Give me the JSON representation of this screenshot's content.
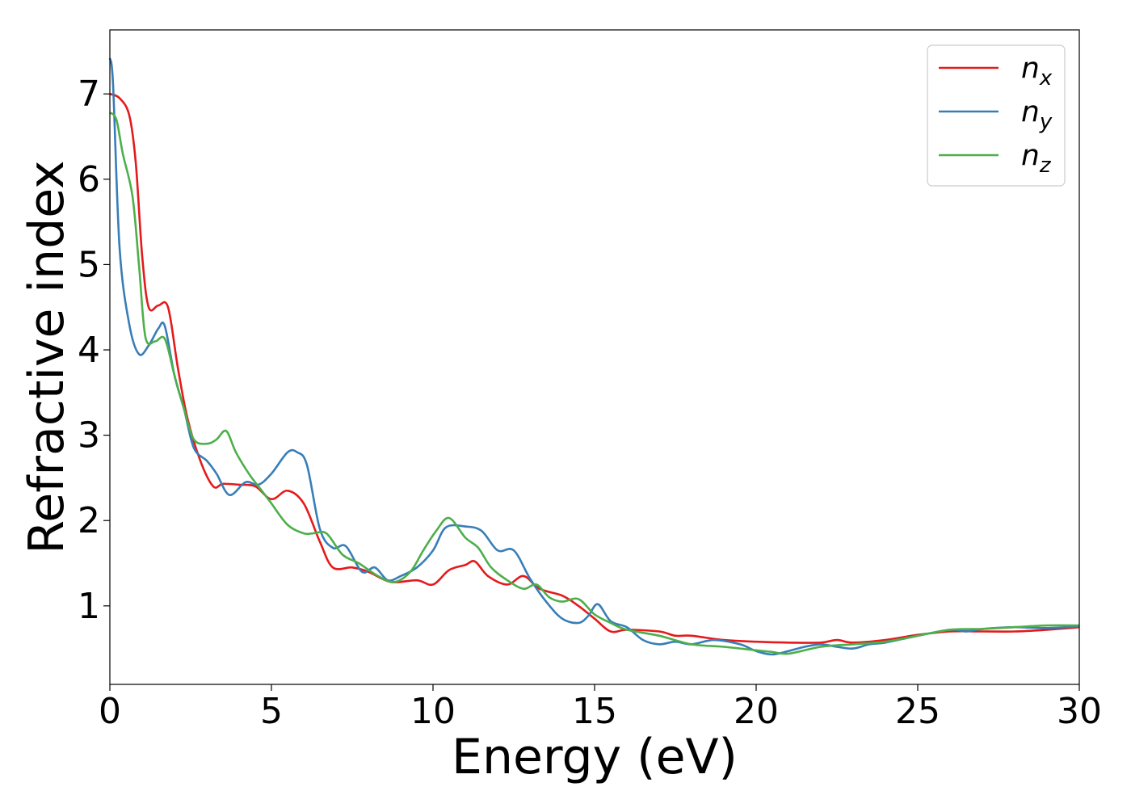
{
  "chart_data": {
    "type": "line",
    "xlabel": "Energy (eV)",
    "ylabel": "Refractive index",
    "xlim": [
      0,
      30
    ],
    "ylim": [
      0.08,
      7.75
    ],
    "xticks": [
      0,
      5,
      10,
      15,
      20,
      25,
      30
    ],
    "xtick_labels": [
      "0",
      "5",
      "10",
      "15",
      "20",
      "25",
      "30"
    ],
    "yticks": [
      1,
      2,
      3,
      4,
      5,
      6,
      7
    ],
    "ytick_labels": [
      "1",
      "2",
      "3",
      "4",
      "5",
      "6",
      "7"
    ],
    "grid": false,
    "legend_position": "top-right",
    "series": [
      {
        "name": "n_x",
        "label_base": "n",
        "label_sub": "x",
        "color": "#e41a1c",
        "points": [
          [
            0,
            7.0
          ],
          [
            0.3,
            6.95
          ],
          [
            0.6,
            6.75
          ],
          [
            0.8,
            6.2
          ],
          [
            1.0,
            5.1
          ],
          [
            1.2,
            4.5
          ],
          [
            1.5,
            4.52
          ],
          [
            1.8,
            4.5
          ],
          [
            2.1,
            3.8
          ],
          [
            2.4,
            3.2
          ],
          [
            2.8,
            2.7
          ],
          [
            3.2,
            2.4
          ],
          [
            3.5,
            2.43
          ],
          [
            4.0,
            2.42
          ],
          [
            4.5,
            2.4
          ],
          [
            5.0,
            2.25
          ],
          [
            5.5,
            2.35
          ],
          [
            6.0,
            2.2
          ],
          [
            6.5,
            1.75
          ],
          [
            6.9,
            1.45
          ],
          [
            7.5,
            1.45
          ],
          [
            8.0,
            1.4
          ],
          [
            8.7,
            1.28
          ],
          [
            9.5,
            1.3
          ],
          [
            10.0,
            1.25
          ],
          [
            10.5,
            1.42
          ],
          [
            11.0,
            1.48
          ],
          [
            11.3,
            1.52
          ],
          [
            11.7,
            1.35
          ],
          [
            12.3,
            1.25
          ],
          [
            12.8,
            1.35
          ],
          [
            13.3,
            1.2
          ],
          [
            14.0,
            1.12
          ],
          [
            14.5,
            1.0
          ],
          [
            15.0,
            0.85
          ],
          [
            15.5,
            0.7
          ],
          [
            16.0,
            0.72
          ],
          [
            17.0,
            0.7
          ],
          [
            17.5,
            0.65
          ],
          [
            18.0,
            0.65
          ],
          [
            19.0,
            0.6
          ],
          [
            20.0,
            0.58
          ],
          [
            21.0,
            0.57
          ],
          [
            22.0,
            0.57
          ],
          [
            22.5,
            0.6
          ],
          [
            23.0,
            0.57
          ],
          [
            24.0,
            0.6
          ],
          [
            25.0,
            0.66
          ],
          [
            26.0,
            0.7
          ],
          [
            27.0,
            0.7
          ],
          [
            28.0,
            0.7
          ],
          [
            29.0,
            0.72
          ],
          [
            30.0,
            0.75
          ]
        ]
      },
      {
        "name": "n_y",
        "label_base": "n",
        "label_sub": "y",
        "color": "#377eb8",
        "points": [
          [
            0,
            7.42
          ],
          [
            0.1,
            7.1
          ],
          [
            0.3,
            5.2
          ],
          [
            0.6,
            4.3
          ],
          [
            0.9,
            3.95
          ],
          [
            1.2,
            4.05
          ],
          [
            1.5,
            4.25
          ],
          [
            1.7,
            4.28
          ],
          [
            2.0,
            3.7
          ],
          [
            2.3,
            3.3
          ],
          [
            2.6,
            2.85
          ],
          [
            3.0,
            2.7
          ],
          [
            3.3,
            2.55
          ],
          [
            3.7,
            2.3
          ],
          [
            4.2,
            2.45
          ],
          [
            4.6,
            2.42
          ],
          [
            5.0,
            2.55
          ],
          [
            5.5,
            2.8
          ],
          [
            5.8,
            2.8
          ],
          [
            6.1,
            2.65
          ],
          [
            6.5,
            1.9
          ],
          [
            6.9,
            1.68
          ],
          [
            7.3,
            1.7
          ],
          [
            7.8,
            1.4
          ],
          [
            8.2,
            1.45
          ],
          [
            8.6,
            1.3
          ],
          [
            9.0,
            1.35
          ],
          [
            9.5,
            1.45
          ],
          [
            10.0,
            1.65
          ],
          [
            10.4,
            1.92
          ],
          [
            11.0,
            1.93
          ],
          [
            11.5,
            1.88
          ],
          [
            12.0,
            1.65
          ],
          [
            12.5,
            1.65
          ],
          [
            13.0,
            1.32
          ],
          [
            13.5,
            1.05
          ],
          [
            14.0,
            0.85
          ],
          [
            14.5,
            0.8
          ],
          [
            14.8,
            0.88
          ],
          [
            15.1,
            1.02
          ],
          [
            15.5,
            0.82
          ],
          [
            16.0,
            0.75
          ],
          [
            16.5,
            0.6
          ],
          [
            17.0,
            0.55
          ],
          [
            17.5,
            0.58
          ],
          [
            18.0,
            0.55
          ],
          [
            18.7,
            0.6
          ],
          [
            19.5,
            0.55
          ],
          [
            20.0,
            0.47
          ],
          [
            20.5,
            0.43
          ],
          [
            21.0,
            0.47
          ],
          [
            21.5,
            0.52
          ],
          [
            22.0,
            0.55
          ],
          [
            22.5,
            0.52
          ],
          [
            23.0,
            0.5
          ],
          [
            23.5,
            0.55
          ],
          [
            24.0,
            0.57
          ],
          [
            25.0,
            0.65
          ],
          [
            26.0,
            0.72
          ],
          [
            26.5,
            0.7
          ],
          [
            27.0,
            0.73
          ],
          [
            28.0,
            0.75
          ],
          [
            29.0,
            0.74
          ],
          [
            30.0,
            0.76
          ]
        ]
      },
      {
        "name": "n_z",
        "label_base": "n",
        "label_sub": "z",
        "color": "#4daf4a",
        "points": [
          [
            0,
            6.78
          ],
          [
            0.2,
            6.7
          ],
          [
            0.4,
            6.3
          ],
          [
            0.7,
            5.8
          ],
          [
            0.9,
            5.0
          ],
          [
            1.1,
            4.15
          ],
          [
            1.4,
            4.1
          ],
          [
            1.7,
            4.13
          ],
          [
            2.0,
            3.7
          ],
          [
            2.3,
            3.3
          ],
          [
            2.6,
            2.95
          ],
          [
            3.0,
            2.9
          ],
          [
            3.3,
            2.95
          ],
          [
            3.6,
            3.05
          ],
          [
            3.9,
            2.8
          ],
          [
            4.3,
            2.55
          ],
          [
            4.7,
            2.35
          ],
          [
            5.0,
            2.2
          ],
          [
            5.5,
            1.95
          ],
          [
            6.0,
            1.85
          ],
          [
            6.3,
            1.85
          ],
          [
            6.7,
            1.85
          ],
          [
            7.2,
            1.6
          ],
          [
            7.7,
            1.5
          ],
          [
            8.3,
            1.35
          ],
          [
            8.8,
            1.28
          ],
          [
            9.3,
            1.4
          ],
          [
            9.7,
            1.65
          ],
          [
            10.1,
            1.88
          ],
          [
            10.5,
            2.03
          ],
          [
            11.0,
            1.8
          ],
          [
            11.4,
            1.68
          ],
          [
            11.8,
            1.45
          ],
          [
            12.3,
            1.3
          ],
          [
            12.8,
            1.2
          ],
          [
            13.2,
            1.25
          ],
          [
            13.6,
            1.1
          ],
          [
            14.0,
            1.05
          ],
          [
            14.5,
            1.08
          ],
          [
            15.0,
            0.9
          ],
          [
            15.5,
            0.8
          ],
          [
            16.0,
            0.72
          ],
          [
            17.0,
            0.65
          ],
          [
            18.0,
            0.55
          ],
          [
            19.0,
            0.52
          ],
          [
            20.0,
            0.48
          ],
          [
            20.5,
            0.46
          ],
          [
            21.0,
            0.44
          ],
          [
            22.0,
            0.52
          ],
          [
            23.0,
            0.55
          ],
          [
            24.0,
            0.58
          ],
          [
            25.0,
            0.65
          ],
          [
            26.0,
            0.72
          ],
          [
            27.0,
            0.73
          ],
          [
            28.0,
            0.75
          ],
          [
            29.0,
            0.77
          ],
          [
            30.0,
            0.77
          ]
        ]
      }
    ]
  }
}
